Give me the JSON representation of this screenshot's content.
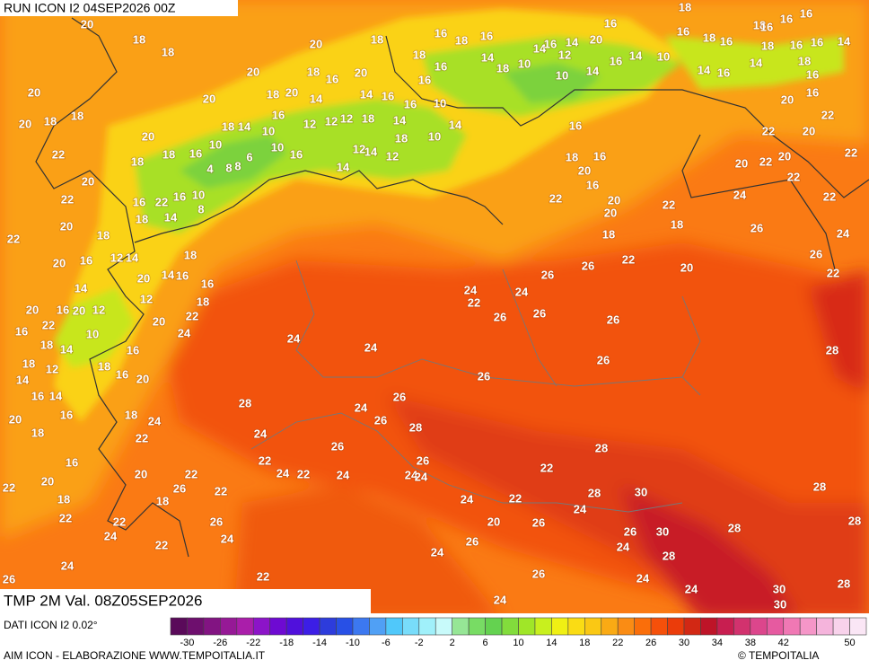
{
  "header": {
    "run": "RUN ICON I2 04SEP2026 00Z",
    "field": "TMP 2M Val. 08Z05SEP2026"
  },
  "map": {
    "labels": [
      20,
      18,
      18,
      20,
      20,
      18,
      18,
      22,
      20,
      22,
      22,
      20,
      18,
      20,
      16,
      14,
      20,
      16,
      20,
      12,
      16,
      22,
      18,
      14,
      10,
      18,
      12,
      14,
      16,
      14,
      20,
      16,
      18,
      16,
      20,
      22,
      18,
      22,
      24,
      24,
      26,
      22,
      22,
      18,
      20,
      22,
      24,
      18,
      16,
      20,
      16,
      18,
      20,
      24,
      22,
      18,
      16,
      12,
      20,
      14,
      16,
      18,
      14,
      12,
      18,
      16,
      22,
      16,
      10,
      14,
      8,
      20,
      18,
      18,
      16,
      10,
      18,
      14,
      8,
      4,
      8,
      6,
      10,
      10,
      16,
      18,
      20,
      14,
      20,
      20,
      20,
      18,
      16,
      20,
      18,
      14,
      16,
      16,
      18,
      14,
      12,
      12,
      12,
      16,
      14,
      12,
      14,
      12,
      18,
      10,
      14,
      10,
      16,
      16,
      18,
      16,
      18,
      16,
      14,
      18,
      10,
      14,
      16,
      14,
      20,
      16,
      10,
      12,
      14,
      16,
      14,
      10,
      18,
      18,
      16,
      16,
      16,
      18,
      16,
      16,
      18,
      16,
      16,
      14,
      14,
      16,
      14,
      18,
      16,
      16,
      20,
      22,
      20,
      22,
      22,
      20,
      22,
      20,
      24,
      22,
      22,
      24,
      26,
      26,
      22,
      28,
      28,
      28,
      28,
      30,
      30,
      28,
      28,
      30,
      30,
      24,
      26,
      24,
      24,
      28,
      28,
      26,
      26,
      26,
      26,
      26,
      24,
      24,
      28,
      26,
      24,
      26,
      28,
      22,
      24,
      26,
      22,
      20,
      24,
      26,
      24,
      26,
      24,
      22,
      24,
      26,
      22,
      22,
      26,
      24,
      22,
      24,
      26,
      22,
      24,
      24,
      24,
      26,
      24,
      22,
      24,
      26,
      26,
      22,
      20,
      18,
      22,
      20,
      18,
      20,
      22,
      16,
      20,
      18,
      16,
      16
    ],
    "symbol": "°"
  },
  "legend": {
    "colors": [
      "#5a0a5a",
      "#6e0f6e",
      "#821482",
      "#961996",
      "#aa1eaa",
      "#8c14c8",
      "#6e0ad2",
      "#5010dc",
      "#3c1ee6",
      "#2d3cdc",
      "#2850e6",
      "#3c78f0",
      "#50a0f5",
      "#50c8fa",
      "#78dcfa",
      "#a0f0fa",
      "#c8fafa",
      "#96e696",
      "#78dc64",
      "#64d250",
      "#82dc3c",
      "#a0e628",
      "#c8f01e",
      "#f0f014",
      "#fadc14",
      "#fac814",
      "#faaa14",
      "#fa8c14",
      "#fa6e0a",
      "#f5500a",
      "#eb3c0a",
      "#d22814",
      "#be1428",
      "#c81e50",
      "#d2326e",
      "#dc468c",
      "#e65aa0",
      "#f078b4",
      "#f596c8",
      "#f5b4dc",
      "#f8d2eb",
      "#fae6f5"
    ],
    "ticks": [
      -30,
      -26,
      -22,
      -18,
      -14,
      -10,
      -6,
      -2,
      2,
      6,
      10,
      14,
      18,
      22,
      26,
      30,
      34,
      38,
      42,
      50
    ]
  },
  "footer": {
    "source": "DATI ICON I2 0.02°",
    "credit": "AIM ICON - ELABORAZIONE WWW.TEMPOITALIA.IT",
    "copyright": "© TEMPOITALIA"
  }
}
